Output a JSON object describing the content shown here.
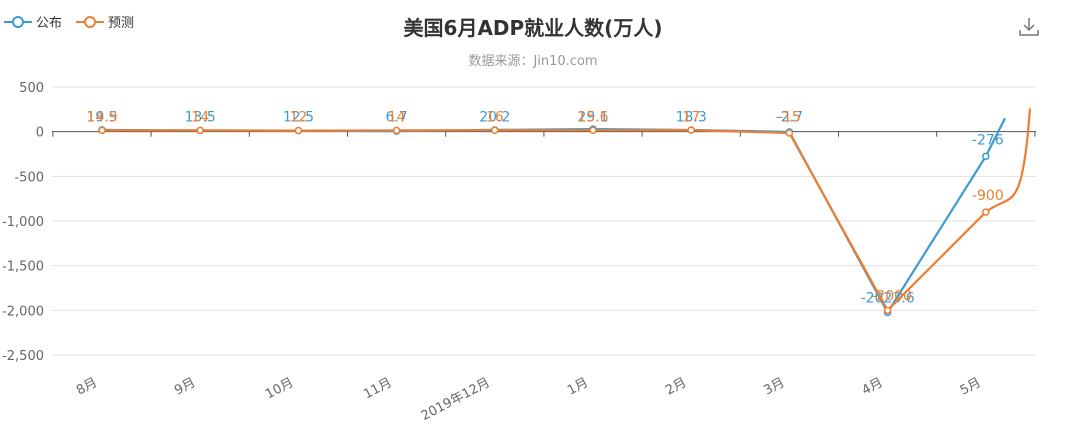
{
  "title": "美国6月ADP就业人数(万人)",
  "subtitle": "数据来源：Jin10.com",
  "legend": [
    {
      "label": "公布",
      "color": "#3a9bd5"
    },
    {
      "label": "预测",
      "color": "#ed7d31"
    }
  ],
  "toolbar": {
    "download_icon": "download-icon"
  },
  "chart_data": {
    "type": "line",
    "categories": [
      "8月",
      "9月",
      "10月",
      "11月",
      "2019年12月",
      "1月",
      "2月",
      "3月",
      "4月",
      "5月"
    ],
    "ylim": [
      -2500,
      500
    ],
    "yticks": [
      500,
      0,
      -500,
      -1000,
      -1500,
      -2000,
      -2500
    ],
    "ytick_labels": [
      "500",
      "0",
      "-500",
      "-1,000",
      "-1,500",
      "-2,000",
      "-2,500"
    ],
    "grid": true,
    "legend_position": "top-left",
    "series": [
      {
        "name": "公布",
        "color": "#3a9bd5",
        "values": [
          19.5,
          13.5,
          12.5,
          6.7,
          20.2,
          29.1,
          18.3,
          -2.7,
          -2023.6,
          -276
        ],
        "labels": [
          "19.5",
          "13.5",
          "12.5",
          "6.7",
          "20.2",
          "29.1",
          "18.3",
          "-2.7",
          "-2023.6",
          "-276"
        ],
        "tail_end": 150
      },
      {
        "name": "预测",
        "color": "#ed7d31",
        "values": [
          14.9,
          14,
          12,
          14,
          16,
          15.6,
          17,
          -15,
          -2000,
          -900
        ],
        "labels": [
          "14.9",
          "14",
          "12",
          "14",
          "16",
          "15.6",
          "17",
          "-15",
          "-2000",
          "-900"
        ],
        "tail_end": 260
      }
    ]
  }
}
